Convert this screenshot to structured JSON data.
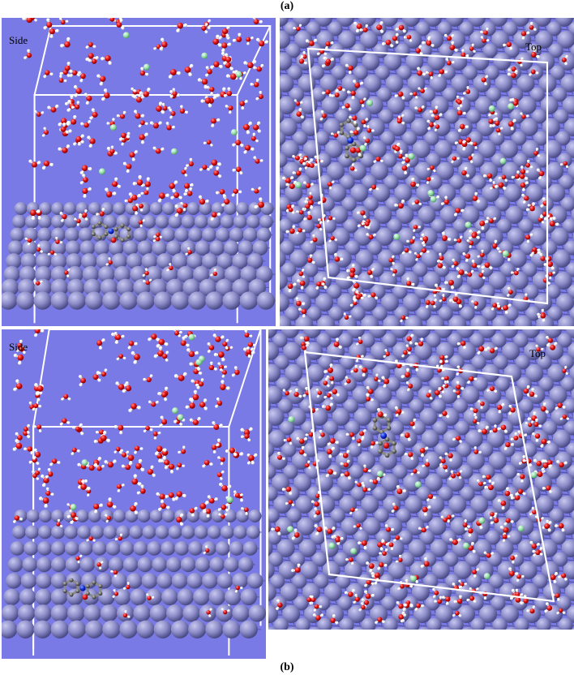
{
  "figure": {
    "label_a": "(a)",
    "label_b": "(b)"
  },
  "panels": [
    {
      "id": "a-side",
      "label": "Side"
    },
    {
      "id": "a-top",
      "label": "Top"
    },
    {
      "id": "b-side",
      "label": "Side"
    },
    {
      "id": "b-top",
      "label": "Top"
    }
  ],
  "colors": {
    "background": "#7a7ae6",
    "metal_atom": "#8c8cc8",
    "oxygen": "#e01010",
    "hydrogen": "#ffffff",
    "chloride": "#9ee0b0",
    "carbon": "#707070",
    "nitrogen": "#1030e0",
    "cell_box": "#ffffff"
  }
}
